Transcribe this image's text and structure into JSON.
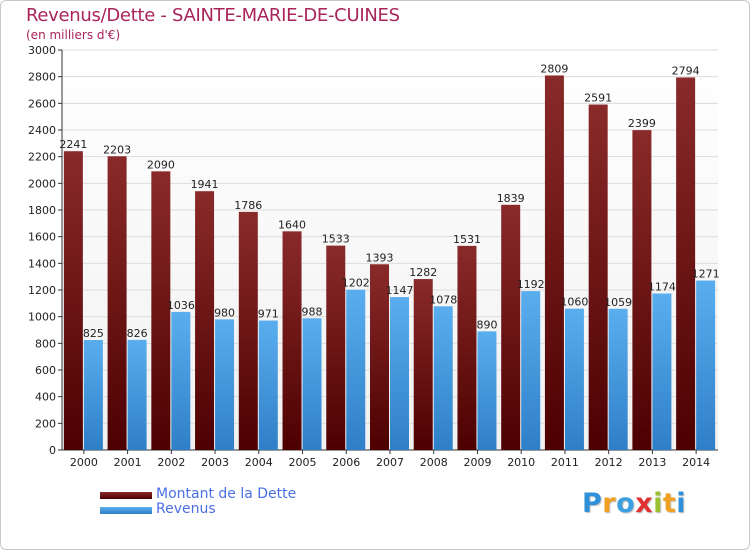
{
  "title": "Revenus/Dette - SAINTE-MARIE-DE-CUINES",
  "subtitle": "(en milliers d'€)",
  "chart_data": {
    "type": "bar",
    "categories": [
      "2000",
      "2001",
      "2002",
      "2003",
      "2004",
      "2005",
      "2006",
      "2007",
      "2008",
      "2009",
      "2010",
      "2011",
      "2012",
      "2013",
      "2014"
    ],
    "series": [
      {
        "name": "Montant de la Dette",
        "values": [
          2241,
          2203,
          2090,
          1941,
          1786,
          1640,
          1533,
          1393,
          1282,
          1531,
          1839,
          2809,
          2591,
          2399,
          2794
        ]
      },
      {
        "name": "Revenus",
        "values": [
          825,
          826,
          1036,
          980,
          971,
          988,
          1202,
          1147,
          1078,
          890,
          1192,
          1060,
          1059,
          1174,
          1271
        ]
      }
    ],
    "ylim": [
      0,
      3000
    ],
    "ytick_step": 200,
    "grid": true,
    "xlabel": "",
    "ylabel": ""
  },
  "legend": {
    "items": [
      {
        "label": "Montant de la Dette",
        "color_top": "#8a2a2a",
        "color_bottom": "#4d0000"
      },
      {
        "label": "Revenus",
        "color_top": "#5aaeee",
        "color_bottom": "#2f7fc8"
      }
    ]
  },
  "colors": {
    "title": "#a8245a",
    "legend_text": "#4a6fe3",
    "grid": "#dcdcdc",
    "plot_bg_top": "#ffffff",
    "plot_bg_bottom": "#f1f1f1"
  },
  "logo": {
    "letters": [
      "P",
      "r",
      "o",
      "x",
      "i",
      "t",
      "i"
    ],
    "letter_colors": [
      "#2f8fd8",
      "#f0a020",
      "#3aa0e0",
      "#e03030",
      "#9ac030",
      "#f0a020",
      "#2f8fd8"
    ]
  }
}
